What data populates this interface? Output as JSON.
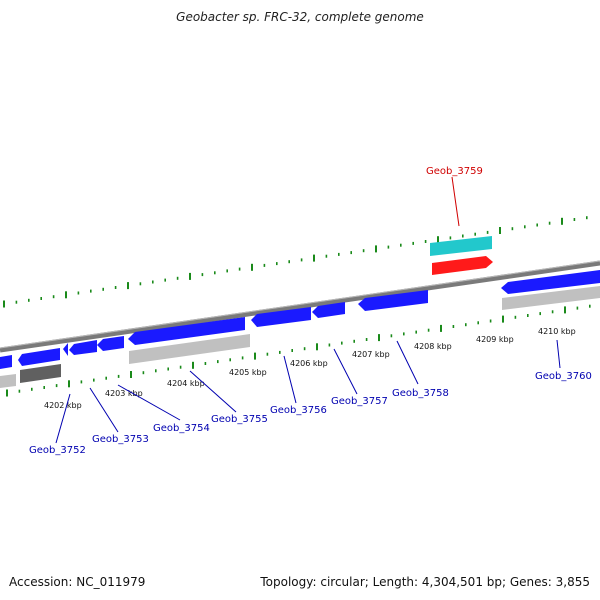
{
  "title": "Geobacter sp. FRC-32, complete genome",
  "footer": {
    "accession": "Accession: NC_011979",
    "summary": "Topology: circular; Length: 4,304,501 bp; Genes: 3,855"
  },
  "scale_labels": [
    "4202 kbp",
    "4203 kbp",
    "4204 kbp",
    "4205 kbp",
    "4206 kbp",
    "4207 kbp",
    "4208 kbp",
    "4209 kbp",
    "4210 kbp"
  ],
  "gene_labels": [
    {
      "label": "Geob_3752",
      "color": "#0000b0"
    },
    {
      "label": "Geob_3753",
      "color": "#0000b0"
    },
    {
      "label": "Geob_3754",
      "color": "#0000b0"
    },
    {
      "label": "Geob_3755",
      "color": "#0000b0"
    },
    {
      "label": "Geob_3756",
      "color": "#0000b0"
    },
    {
      "label": "Geob_3757",
      "color": "#0000b0"
    },
    {
      "label": "Geob_3758",
      "color": "#0000b0"
    },
    {
      "label": "Geob_3759",
      "color": "#d00000"
    },
    {
      "label": "Geob_3760",
      "color": "#0000b0"
    }
  ],
  "colors": {
    "cds": "#1a1aff",
    "gene_highlight": "#ff1a1a",
    "cyan_feature": "#22c8cc",
    "gray_feature": "#c0c0c0",
    "dark_gray_feature": "#606060",
    "backbone": "#808080",
    "tick": "#1a8a1a"
  }
}
